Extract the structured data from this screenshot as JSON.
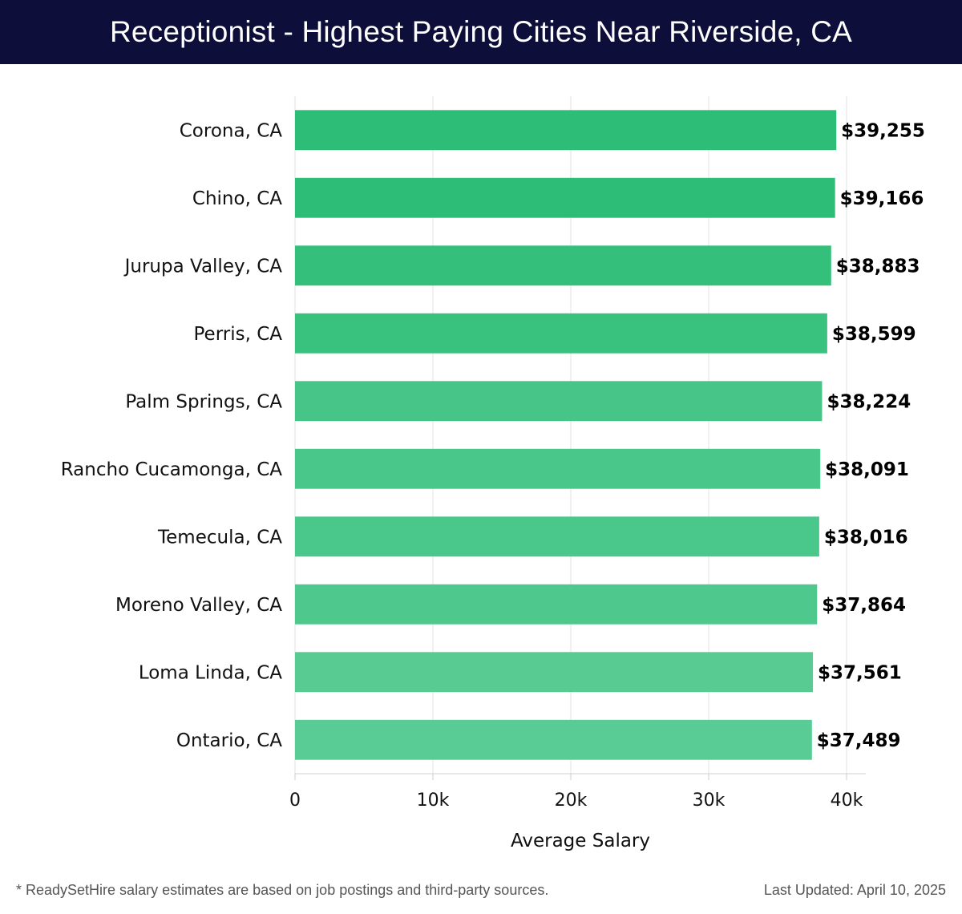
{
  "header": {
    "title": "Receptionist - Highest Paying Cities Near Riverside, CA"
  },
  "chart_data": {
    "type": "bar",
    "orientation": "horizontal",
    "title": "Receptionist - Highest Paying Cities Near Riverside, CA",
    "xlabel": "Average Salary",
    "ylabel": "",
    "xlim": [
      0,
      40000
    ],
    "x_ticks": [
      0,
      10000,
      20000,
      30000,
      40000
    ],
    "x_tick_labels": [
      "0",
      "10k",
      "20k",
      "30k",
      "40k"
    ],
    "grid": "vertical",
    "categories": [
      "Corona, CA",
      "Chino, CA",
      "Jurupa Valley, CA",
      "Perris, CA",
      "Palm Springs, CA",
      "Rancho Cucamonga, CA",
      "Temecula, CA",
      "Moreno Valley, CA",
      "Loma Linda, CA",
      "Ontario, CA"
    ],
    "values": [
      39255,
      39166,
      38883,
      38599,
      38224,
      38091,
      38016,
      37864,
      37561,
      37489
    ],
    "value_labels": [
      "$39,255",
      "$39,166",
      "$38,883",
      "$38,599",
      "$38,224",
      "$38,091",
      "$38,016",
      "$37,864",
      "$37,561",
      "$37,489"
    ],
    "bar_colors": [
      "#2dbd76",
      "#2dbd76",
      "#34c07a",
      "#38c27d",
      "#47c588",
      "#49c689",
      "#4ac78a",
      "#4fc88d",
      "#57cb92",
      "#58cc94"
    ]
  },
  "footer": {
    "note": "* ReadySetHire salary estimates are based on job postings and third-party sources.",
    "updated": "Last Updated: April 10, 2025"
  }
}
